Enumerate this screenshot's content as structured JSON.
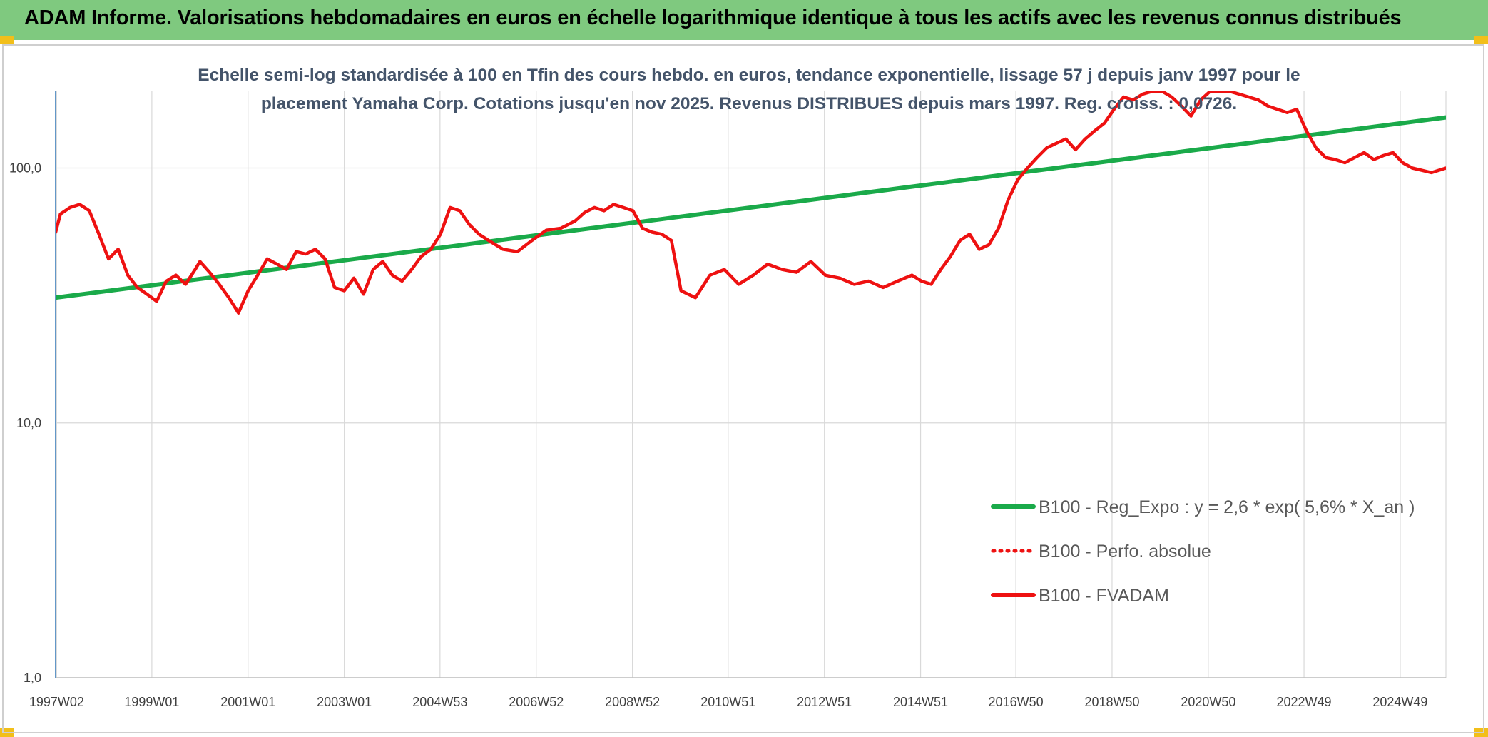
{
  "header": {
    "title": "ADAM Informe. Valorisations hebdomadaires en euros en échelle logarithmique identique à tous les actifs avec les revenus connus distribués"
  },
  "colors": {
    "header_bg": "#7fc97f",
    "corner_accent": "#f2bf1a",
    "trend": "#1aaa4a",
    "series": "#ee1111",
    "title_text": "#44546a"
  },
  "chart_data": {
    "type": "line",
    "title": "Echelle semi-log standardisée à 100 en Tfin des cours hebdo. en euros, tendance exponentielle, lissage 57 j depuis janv 1997 pour le placement Yamaha Corp. Cotations jusqu'en nov 2025. Revenus DISTRIBUES depuis mars 1997. Reg. croiss. : 0,0726.",
    "y_scale": "log",
    "ylim": [
      1,
      200
    ],
    "xlim": [
      1997.0,
      2025.9
    ],
    "y_ticks": [
      "1,0",
      "10,0",
      "100,0"
    ],
    "x_ticks": [
      {
        "label": "1997W02",
        "x": 1997.02
      },
      {
        "label": "1999W01",
        "x": 1999.0
      },
      {
        "label": "2001W01",
        "x": 2001.0
      },
      {
        "label": "2003W01",
        "x": 2003.0
      },
      {
        "label": "2004W53",
        "x": 2004.99
      },
      {
        "label": "2006W52",
        "x": 2006.99
      },
      {
        "label": "2008W52",
        "x": 2008.99
      },
      {
        "label": "2010W51",
        "x": 2010.98
      },
      {
        "label": "2012W51",
        "x": 2012.98
      },
      {
        "label": "2014W51",
        "x": 2014.98
      },
      {
        "label": "2016W50",
        "x": 2016.96
      },
      {
        "label": "2018W50",
        "x": 2018.96
      },
      {
        "label": "2020W50",
        "x": 2020.96
      },
      {
        "label": "2022W49",
        "x": 2022.95
      },
      {
        "label": "2024W49",
        "x": 2024.95
      }
    ],
    "grid": true,
    "legend_position": "bottom-right",
    "series": [
      {
        "name": "B100 - Reg_Expo : y = 2,6 * exp( 5,6% *  X_an )",
        "style": "solid",
        "color": "#1aaa4a",
        "x": [
          1997.0,
          2025.9
        ],
        "y": [
          31,
          158
        ]
      },
      {
        "name": "B100 - Perfo. absolue",
        "style": "dotted",
        "color": "#ee1111",
        "x": [],
        "y": []
      },
      {
        "name": "B100 - FVADAM",
        "style": "solid",
        "color": "#ee1111",
        "x": [
          1997.0,
          1997.1,
          1997.3,
          1997.5,
          1997.7,
          1997.9,
          1998.1,
          1998.3,
          1998.5,
          1998.7,
          1998.9,
          1999.1,
          1999.3,
          1999.5,
          1999.7,
          1999.9,
          2000.0,
          2000.2,
          2000.4,
          2000.6,
          2000.8,
          2001.0,
          2001.2,
          2001.4,
          2001.6,
          2001.8,
          2002.0,
          2002.2,
          2002.4,
          2002.6,
          2002.8,
          2003.0,
          2003.2,
          2003.4,
          2003.6,
          2003.8,
          2004.0,
          2004.2,
          2004.4,
          2004.6,
          2004.8,
          2005.0,
          2005.2,
          2005.4,
          2005.6,
          2005.8,
          2006.0,
          2006.3,
          2006.6,
          2006.9,
          2007.2,
          2007.5,
          2007.8,
          2008.0,
          2008.2,
          2008.4,
          2008.6,
          2008.8,
          2009.0,
          2009.2,
          2009.4,
          2009.6,
          2009.8,
          2010.0,
          2010.3,
          2010.6,
          2010.9,
          2011.2,
          2011.5,
          2011.8,
          2012.1,
          2012.4,
          2012.7,
          2013.0,
          2013.3,
          2013.6,
          2013.9,
          2014.2,
          2014.5,
          2014.8,
          2015.0,
          2015.2,
          2015.4,
          2015.6,
          2015.8,
          2016.0,
          2016.2,
          2016.4,
          2016.6,
          2016.8,
          2017.0,
          2017.2,
          2017.4,
          2017.6,
          2017.8,
          2018.0,
          2018.2,
          2018.4,
          2018.6,
          2018.8,
          2019.0,
          2019.2,
          2019.4,
          2019.6,
          2019.8,
          2020.0,
          2020.2,
          2020.4,
          2020.6,
          2020.8,
          2021.0,
          2021.2,
          2021.4,
          2021.6,
          2021.8,
          2022.0,
          2022.2,
          2022.4,
          2022.6,
          2022.8,
          2023.0,
          2023.2,
          2023.4,
          2023.6,
          2023.8,
          2024.0,
          2024.2,
          2024.4,
          2024.6,
          2024.8,
          2025.0,
          2025.2,
          2025.4,
          2025.6,
          2025.9
        ],
        "y": [
          56,
          66,
          70,
          72,
          68,
          55,
          44,
          48,
          38,
          34,
          32,
          30,
          36,
          38,
          35,
          40,
          43,
          39,
          35,
          31,
          27,
          33,
          38,
          44,
          42,
          40,
          47,
          46,
          48,
          44,
          34,
          33,
          37,
          32,
          40,
          43,
          38,
          36,
          40,
          45,
          48,
          55,
          70,
          68,
          60,
          55,
          52,
          48,
          47,
          52,
          57,
          58,
          62,
          67,
          70,
          68,
          72,
          70,
          68,
          58,
          56,
          55,
          52,
          33,
          31,
          38,
          40,
          35,
          38,
          42,
          40,
          39,
          43,
          38,
          37,
          35,
          36,
          34,
          36,
          38,
          36,
          35,
          40,
          45,
          52,
          55,
          48,
          50,
          58,
          75,
          90,
          100,
          110,
          120,
          125,
          130,
          118,
          130,
          140,
          150,
          170,
          190,
          185,
          195,
          200,
          200,
          190,
          175,
          160,
          185,
          200,
          200,
          200,
          195,
          190,
          185,
          175,
          170,
          165,
          170,
          140,
          120,
          110,
          108,
          105,
          110,
          115,
          108,
          112,
          115,
          105,
          100,
          98,
          96,
          100
        ]
      }
    ]
  }
}
